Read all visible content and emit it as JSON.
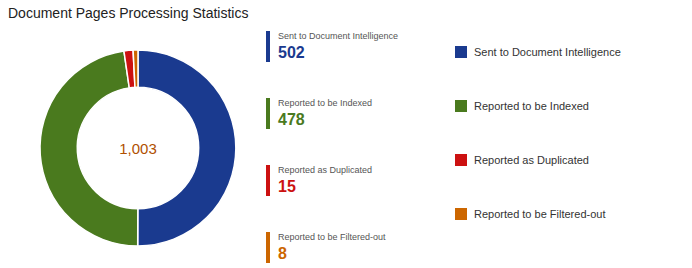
{
  "chart_data": {
    "type": "pie",
    "title": "Document Pages Processing Statistics",
    "categories": [
      "Sent to Document Intelligence",
      "Reported to be Indexed",
      "Reported as Duplicated",
      "Reported to be Filtered-out"
    ],
    "values": [
      502,
      478,
      15,
      8
    ],
    "colors": [
      "#1a3a8f",
      "#4a7a1e",
      "#cc1111",
      "#cc6600"
    ],
    "annotations": [
      "1,003"
    ],
    "data_labels": true,
    "legend": "right"
  }
}
